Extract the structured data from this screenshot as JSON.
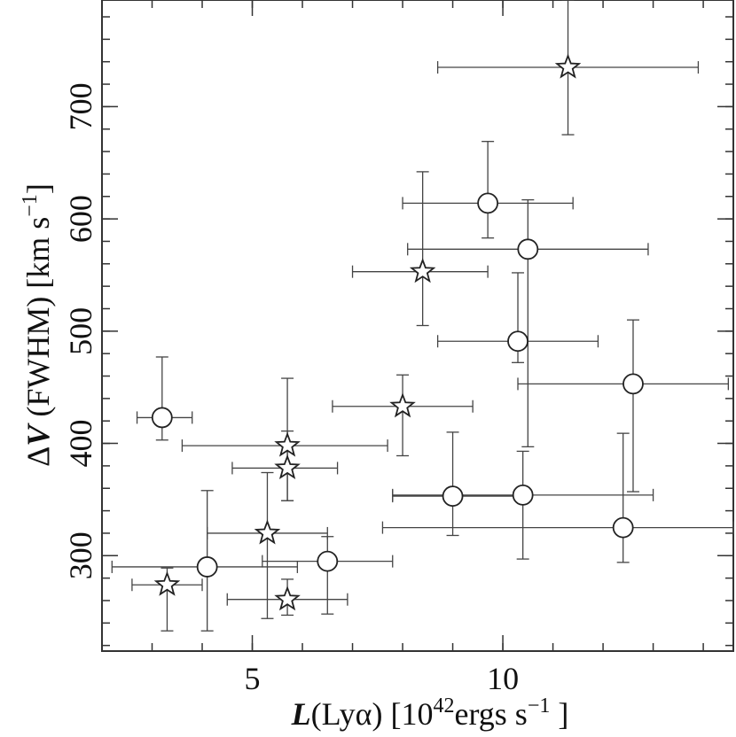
{
  "chart_data": {
    "type": "scatter",
    "title": "",
    "xlim": [
      2.0,
      14.6
    ],
    "ylim": [
      215,
      795
    ],
    "x_ticks": [
      {
        "value": 5,
        "label": "5"
      },
      {
        "value": 10,
        "label": "10"
      }
    ],
    "y_ticks": [
      {
        "value": 300,
        "label": "300"
      },
      {
        "value": 400,
        "label": "400"
      },
      {
        "value": 500,
        "label": "500"
      },
      {
        "value": 600,
        "label": "600"
      },
      {
        "value": 700,
        "label": "700"
      }
    ],
    "x_minor_step": 1,
    "y_minor_step": 20,
    "xlabel": {
      "italic": "L",
      "main": "(Lyα) [10",
      "sup1": "42",
      "mid": "ergs s",
      "sup2": "−1",
      "end": " ]"
    },
    "ylabel": {
      "prefix": "Δ",
      "italic": "V",
      "main": " (FWHM) [km s",
      "sup": "−1",
      "end": "]"
    },
    "series": [
      {
        "marker": "circle",
        "points": [
          {
            "x": 3.2,
            "y": 423,
            "xerr": [
              2.7,
              3.8
            ],
            "yerr": [
              403,
              477
            ]
          },
          {
            "x": 4.1,
            "y": 290,
            "xerr": [
              2.2,
              5.9
            ],
            "yerr": [
              233,
              358
            ]
          },
          {
            "x": 6.5,
            "y": 295,
            "xerr": [
              5.2,
              7.8
            ],
            "yerr": [
              248,
              317
            ]
          },
          {
            "x": 9.7,
            "y": 614,
            "xerr": [
              8.0,
              11.4
            ],
            "yerr": [
              583,
              669
            ]
          },
          {
            "x": 10.5,
            "y": 573,
            "xerr": [
              8.1,
              12.9
            ],
            "yerr": [
              397,
              617
            ]
          },
          {
            "x": 10.3,
            "y": 491,
            "xerr": [
              8.7,
              11.9
            ],
            "yerr": [
              472,
              552
            ]
          },
          {
            "x": 12.6,
            "y": 453,
            "xerr": [
              10.3,
              14.5
            ],
            "yerr": [
              357,
              510
            ]
          },
          {
            "x": 9.0,
            "y": 353,
            "xerr": [
              7.8,
              10.3
            ],
            "yerr": [
              318,
              410
            ]
          },
          {
            "x": 10.4,
            "y": 354,
            "xerr": [
              7.8,
              13.0
            ],
            "yerr": [
              297,
              393
            ]
          },
          {
            "x": 12.4,
            "y": 325,
            "xerr": [
              7.6,
              14.6
            ],
            "yerr": [
              294,
              409
            ]
          }
        ]
      },
      {
        "marker": "star",
        "points": [
          {
            "x": 11.3,
            "y": 735,
            "xerr": [
              8.7,
              13.9
            ],
            "yerr": [
              675,
              795
            ]
          },
          {
            "x": 8.4,
            "y": 553,
            "xerr": [
              7.0,
              9.7
            ],
            "yerr": [
              505,
              642
            ]
          },
          {
            "x": 8.0,
            "y": 433,
            "xerr": [
              6.6,
              9.4
            ],
            "yerr": [
              389,
              461
            ]
          },
          {
            "x": 5.7,
            "y": 398,
            "xerr": [
              3.6,
              7.7
            ],
            "yerr": [
              349,
              458
            ]
          },
          {
            "x": 5.7,
            "y": 378,
            "xerr": [
              4.6,
              6.7
            ],
            "yerr": [
              349,
              411
            ]
          },
          {
            "x": 5.3,
            "y": 320,
            "xerr": [
              4.1,
              6.5
            ],
            "yerr": [
              244,
              374
            ]
          },
          {
            "x": 3.3,
            "y": 274,
            "xerr": [
              2.6,
              4.0
            ],
            "yerr": [
              233,
              289
            ]
          },
          {
            "x": 5.7,
            "y": 261,
            "xerr": [
              4.5,
              6.9
            ],
            "yerr": [
              247,
              279
            ]
          }
        ]
      }
    ]
  }
}
